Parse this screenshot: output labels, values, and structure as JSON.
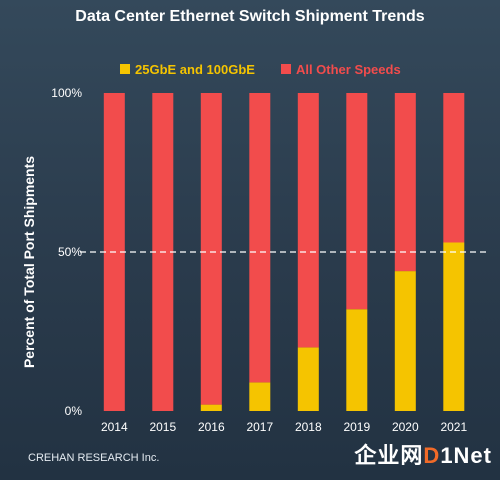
{
  "chart_data": {
    "type": "bar",
    "stacked": true,
    "title": "Data Center Ethernet Switch Shipment Trends",
    "ylabel": "Percent of Total Port Shipments",
    "xlabel": "",
    "categories": [
      "2014",
      "2015",
      "2016",
      "2017",
      "2018",
      "2019",
      "2020",
      "2021"
    ],
    "series": [
      {
        "name": "25GbE and 100GbE",
        "color": "#f5c400",
        "values": [
          0,
          0,
          2,
          9,
          20,
          32,
          44,
          53
        ]
      },
      {
        "name": "All Other Speeds",
        "color": "#f24c4c",
        "values": [
          100,
          100,
          98,
          91,
          80,
          68,
          56,
          47
        ]
      }
    ],
    "ylim": [
      0,
      100
    ],
    "yticks": [
      "0%",
      "50%",
      "100%"
    ],
    "reference_line": {
      "value": 50,
      "style": "dashed",
      "color": "#ffffff"
    },
    "legend_position": "top",
    "grid": false
  },
  "footer": "CREHAN RESEARCH Inc.",
  "watermark": {
    "prefix": "企业网",
    "brand_o": "D",
    "brand_rest": "1Net"
  }
}
